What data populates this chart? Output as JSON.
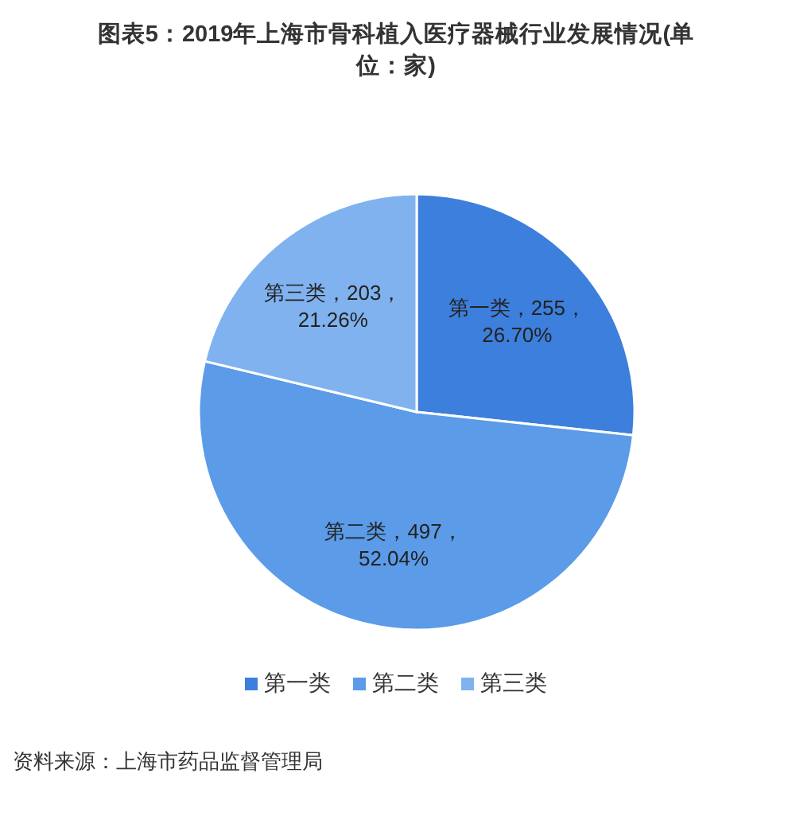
{
  "chart_data": {
    "type": "pie",
    "title": "图表5：2019年上海市骨科植入医疗器械行业发展情况(单位：家)",
    "categories": [
      "第一类",
      "第二类",
      "第三类"
    ],
    "values": [
      255,
      497,
      203
    ],
    "colors": [
      "#3d7fdc",
      "#5b9be8",
      "#80b2ef"
    ],
    "value_labels": [
      "第一类，255，26.70%",
      "第二类，497，52.04%",
      "第三类，203，21.26%"
    ],
    "legend": "bottom",
    "annotations": [
      "资料来源：上海市药品监督管理局"
    ]
  }
}
